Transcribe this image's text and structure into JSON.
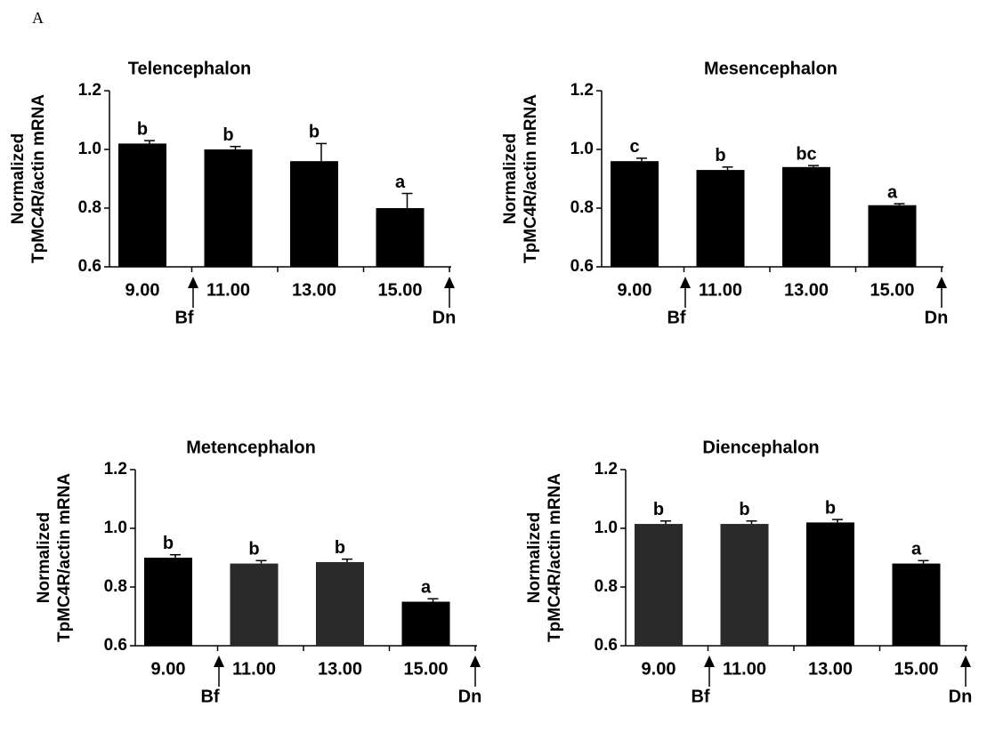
{
  "panel_label": "A",
  "chart_data": [
    {
      "type": "bar",
      "title": "Telencephalon",
      "ylabel": [
        "Normalized",
        "TpMC4R/actin  mRNA"
      ],
      "categories": [
        "9.00",
        "11.00",
        "13.00",
        "15.00"
      ],
      "values": [
        1.02,
        1.0,
        0.96,
        0.8
      ],
      "errors": [
        0.01,
        0.01,
        0.06,
        0.05
      ],
      "annotations": [
        "b",
        "b",
        "b",
        "a"
      ],
      "colors": [
        "#000000",
        "#000000",
        "#000000",
        "#000000"
      ],
      "arrows": [
        "Bf",
        "Dn"
      ],
      "ylim": [
        0.6,
        1.2
      ],
      "yticks": [
        0.6,
        0.8,
        {
          "value": 1,
          "label": "1.0"
        },
        1.2
      ]
    },
    {
      "type": "bar",
      "title": "Mesencephalon",
      "ylabel": [
        "Normalized",
        "TpMC4R/actin  mRNA"
      ],
      "categories": [
        "9.00",
        "11.00",
        "13.00",
        "15.00"
      ],
      "values": [
        0.96,
        0.93,
        0.94,
        0.81
      ],
      "errors": [
        0.01,
        0.01,
        0.005,
        0.005
      ],
      "annotations": [
        "c",
        "b",
        "bc",
        "a"
      ],
      "colors": [
        "#000000",
        "#000000",
        "#000000",
        "#000000"
      ],
      "arrows": [
        "Bf",
        "Dn"
      ],
      "ylim": [
        0.6,
        1.2
      ],
      "yticks": [
        0.6,
        0.8,
        {
          "value": 1,
          "label": "1.0"
        },
        1.2
      ]
    },
    {
      "type": "bar",
      "title": "Metencephalon",
      "ylabel": [
        "Normalized",
        "TpMC4R/actin  mRNA"
      ],
      "categories": [
        "9.00",
        "11.00",
        "13.00",
        "15.00"
      ],
      "values": [
        0.9,
        0.88,
        0.885,
        0.75
      ],
      "errors": [
        0.01,
        0.01,
        0.01,
        0.01
      ],
      "annotations": [
        "b",
        "b",
        "b",
        "a"
      ],
      "colors": [
        "#000000",
        "#2a2a2a",
        "#2a2a2a",
        "#000000"
      ],
      "arrows": [
        "Bf",
        "Dn"
      ],
      "ylim": [
        0.6,
        1.2
      ],
      "yticks": [
        0.6,
        0.8,
        {
          "value": 1,
          "label": "1.0"
        },
        1.2
      ]
    },
    {
      "type": "bar",
      "title": "Diencephalon",
      "ylabel": [
        "Normalized",
        "TpMC4R/actin  mRNA"
      ],
      "categories": [
        "9.00",
        "11.00",
        "13.00",
        "15.00"
      ],
      "values": [
        1.015,
        1.015,
        1.02,
        0.88
      ],
      "errors": [
        0.01,
        0.01,
        0.01,
        0.01
      ],
      "annotations": [
        "b",
        "b",
        "b",
        "a"
      ],
      "colors": [
        "#2a2a2a",
        "#2a2a2a",
        "#000000",
        "#000000"
      ],
      "arrows": [
        "Bf",
        "Dn"
      ],
      "ylim": [
        0.6,
        1.2
      ],
      "yticks": [
        0.6,
        0.8,
        {
          "value": 1,
          "label": "1.0"
        },
        1.2
      ]
    }
  ]
}
